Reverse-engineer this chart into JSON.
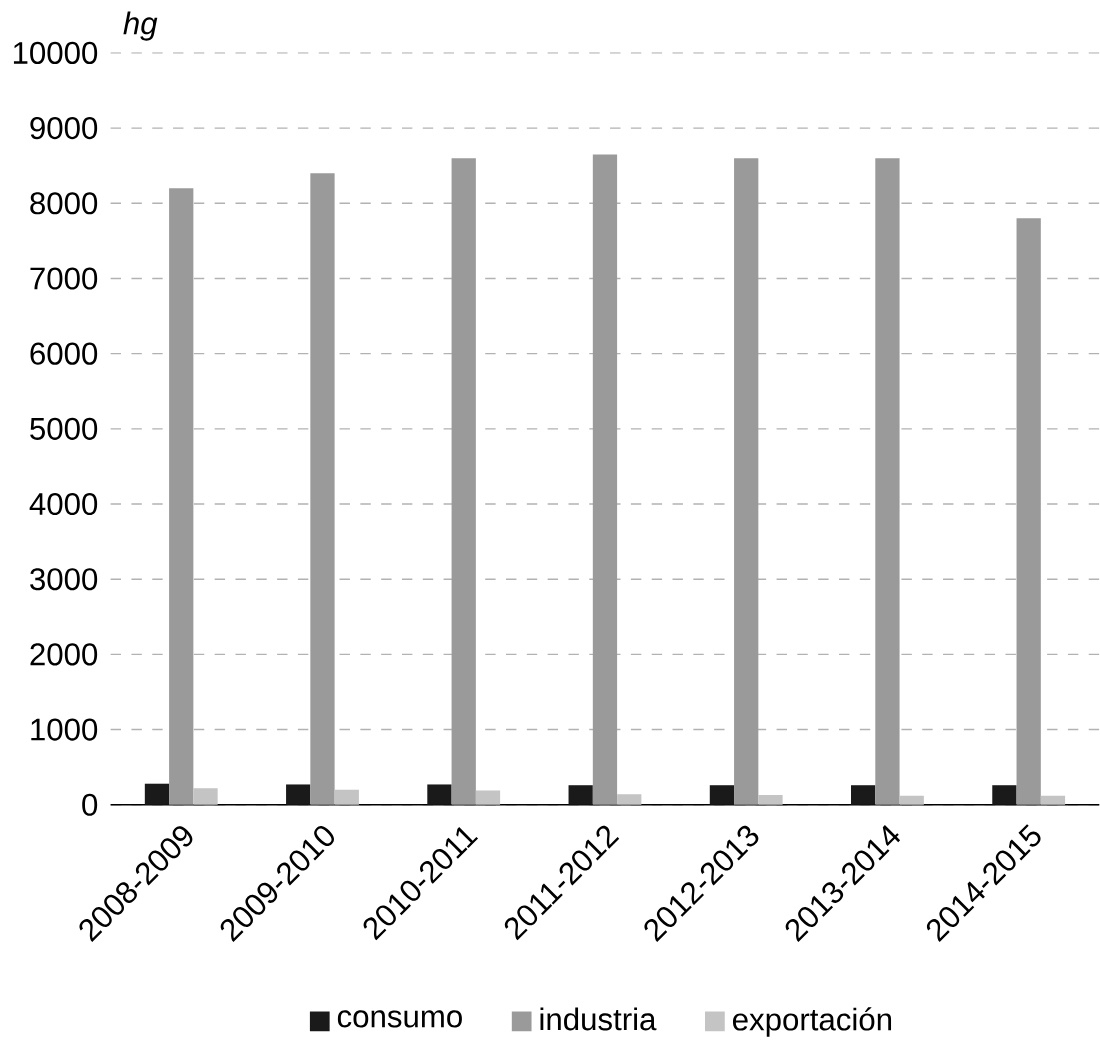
{
  "chart_data": {
    "type": "bar",
    "ylabel": "hg",
    "categories": [
      "2008-2009",
      "2009-2010",
      "2010-2011",
      "2011-2012",
      "2012-2013",
      "2013-2014",
      "2014-2015"
    ],
    "series": [
      {
        "name": "consumo",
        "color": "#1a1a1a",
        "values": [
          280,
          270,
          270,
          260,
          260,
          260,
          260
        ]
      },
      {
        "name": "industria",
        "color": "#9a9a9a",
        "values": [
          8200,
          8400,
          8600,
          8650,
          8600,
          8600,
          7800
        ]
      },
      {
        "name": "exportación",
        "color": "#c4c4c4",
        "values": [
          220,
          200,
          190,
          140,
          130,
          120,
          120
        ]
      }
    ],
    "ylim": [
      0,
      10000
    ],
    "yticks": [
      0,
      1000,
      2000,
      3000,
      4000,
      5000,
      6000,
      7000,
      8000,
      9000,
      10000
    ],
    "grid": "y",
    "legend": "bottom"
  }
}
